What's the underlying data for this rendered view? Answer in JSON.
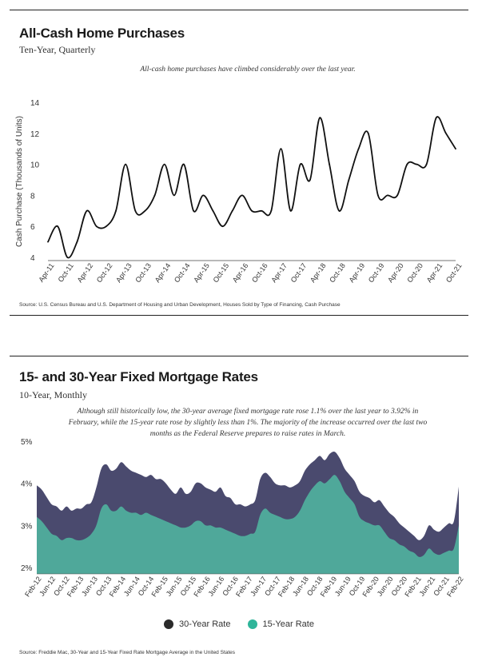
{
  "chart_data": [
    {
      "type": "line",
      "title": "All-Cash Home Purchases",
      "subtitle": "Ten-Year, Quarterly",
      "annotation": "All-cash home purchases have climbed considerably over the last year.",
      "ylabel": "Cash Purchase (Thousands of Units)",
      "xlabel": "",
      "ylim": [
        4,
        14
      ],
      "yticks": [
        4,
        6,
        8,
        10,
        12,
        14
      ],
      "grid": false,
      "x_tick_labels": [
        "Apr-11",
        "Oct-11",
        "Apr-12",
        "Oct-12",
        "Apr-13",
        "Oct-13",
        "Apr-14",
        "Oct-14",
        "Apr-15",
        "Oct-15",
        "Apr-16",
        "Oct-16",
        "Apr-17",
        "Oct-17",
        "Apr-18",
        "Oct-18",
        "Apr-19",
        "Oct-19",
        "Apr-20",
        "Oct-20",
        "Apr-21",
        "Oct-21"
      ],
      "values": [
        5,
        6,
        4,
        5,
        7,
        6,
        6,
        7,
        10,
        7,
        7,
        8,
        10,
        8,
        10,
        7,
        8,
        7,
        6,
        7,
        8,
        7,
        7,
        7,
        11,
        7,
        10,
        9,
        13,
        10,
        7,
        9,
        11,
        12,
        8,
        8,
        8,
        10,
        10,
        10,
        13,
        12,
        11
      ],
      "line_color": "#111111",
      "source": "Source: U.S. Census Bureau and U.S. Department of Housing and Urban Development, Houses Sold by Type of Financing, Cash Purchase"
    },
    {
      "type": "area",
      "title": "15- and 30-Year Fixed Mortgage Rates",
      "subtitle": "10-Year, Monthly",
      "annotation_lines": [
        "Although still historically low, the 30-year average fixed mortgage rate rose 1.1% over the last year to 3.92% in",
        "February, while the 15-year rate rose by slightly less than 1%. The majority of the increase occurred over the last two",
        "months as the Federal Reserve prepares to raise rates in March."
      ],
      "ylim": [
        2,
        5
      ],
      "yticks": [
        "2%",
        "3%",
        "4%",
        "5%"
      ],
      "ytick_values": [
        2,
        3,
        4,
        5
      ],
      "grid": false,
      "x_tick_labels": [
        "Feb-12",
        "Jun-12",
        "Oct-12",
        "Feb-13",
        "Jun-13",
        "Oct-13",
        "Feb-14",
        "Jun-14",
        "Oct-14",
        "Feb-15",
        "Jun-15",
        "Oct-15",
        "Feb-16",
        "Jun-16",
        "Oct-16",
        "Feb-17",
        "Jun-17",
        "Oct-17",
        "Feb-18",
        "Jun-18",
        "Oct-18",
        "Feb-19",
        "Jun-19",
        "Oct-19",
        "Feb-20",
        "Jun-20",
        "Oct-20",
        "Feb-21",
        "Jun-21",
        "Oct-21",
        "Feb-22"
      ],
      "series": [
        {
          "name": "30-Year Rate",
          "color": "#4a4a6e",
          "values": [
            3.95,
            3.85,
            3.67,
            3.5,
            3.45,
            3.35,
            3.45,
            3.35,
            3.4,
            3.4,
            3.5,
            3.55,
            3.9,
            4.35,
            4.45,
            4.3,
            4.35,
            4.5,
            4.4,
            4.3,
            4.25,
            4.2,
            4.15,
            4.2,
            4.1,
            4.1,
            4.0,
            3.85,
            3.75,
            3.9,
            3.75,
            3.8,
            4.0,
            4.0,
            3.9,
            3.85,
            3.8,
            3.9,
            3.7,
            3.65,
            3.5,
            3.5,
            3.45,
            3.5,
            3.6,
            4.1,
            4.25,
            4.15,
            4.0,
            3.95,
            3.95,
            3.9,
            3.95,
            4.05,
            4.3,
            4.45,
            4.55,
            4.65,
            4.55,
            4.7,
            4.75,
            4.6,
            4.35,
            4.2,
            4.05,
            3.8,
            3.7,
            3.65,
            3.55,
            3.6,
            3.45,
            3.3,
            3.2,
            3.05,
            2.95,
            2.85,
            2.75,
            2.65,
            2.75,
            3.0,
            2.9,
            2.85,
            2.95,
            3.05,
            3.1,
            3.92
          ]
        },
        {
          "name": "15-Year Rate",
          "color": "#4fa89a",
          "values": [
            3.2,
            3.1,
            2.95,
            2.8,
            2.75,
            2.65,
            2.7,
            2.7,
            2.65,
            2.65,
            2.7,
            2.8,
            3.0,
            3.4,
            3.5,
            3.35,
            3.35,
            3.45,
            3.35,
            3.3,
            3.3,
            3.25,
            3.3,
            3.25,
            3.2,
            3.15,
            3.1,
            3.05,
            3.0,
            2.95,
            2.95,
            3.0,
            3.1,
            3.1,
            3.0,
            3.0,
            2.95,
            2.95,
            2.9,
            2.85,
            2.8,
            2.75,
            2.75,
            2.8,
            2.85,
            3.25,
            3.4,
            3.3,
            3.25,
            3.2,
            3.15,
            3.15,
            3.2,
            3.35,
            3.6,
            3.8,
            3.95,
            4.05,
            4.0,
            4.1,
            4.2,
            4.05,
            3.8,
            3.65,
            3.5,
            3.2,
            3.1,
            3.05,
            3.0,
            3.0,
            2.85,
            2.7,
            2.65,
            2.55,
            2.5,
            2.4,
            2.35,
            2.25,
            2.3,
            2.45,
            2.35,
            2.3,
            2.35,
            2.4,
            2.45,
            3.0
          ]
        }
      ],
      "source": "Source: Freddie Mac, 30-Year and 15-Year Fixed Rate Mortgage Average in the United States"
    }
  ]
}
